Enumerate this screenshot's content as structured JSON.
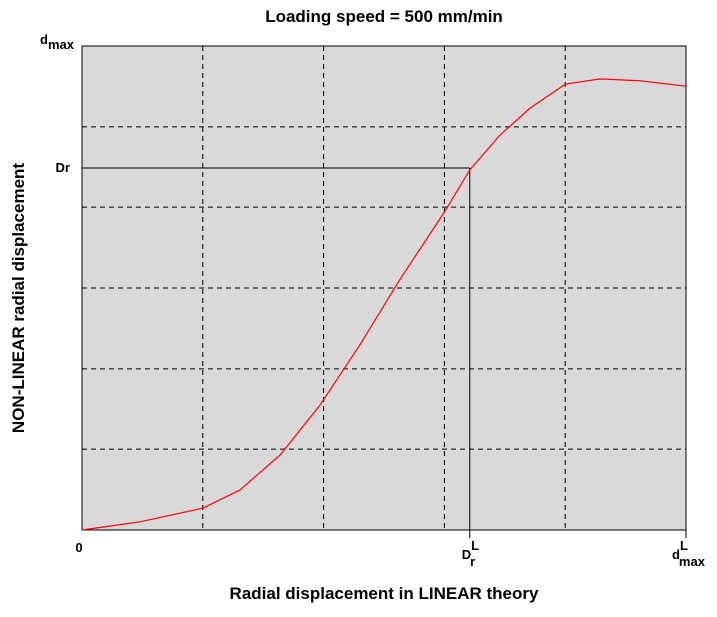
{
  "chart_data": {
    "type": "line",
    "title": "Loading speed = 500 mm/min",
    "xlabel": "Radial displacement in LINEAR theory",
    "ylabel": "NON-LINEAR radial displacement",
    "x": [
      0,
      0.096,
      0.2,
      0.262,
      0.328,
      0.394,
      0.46,
      0.526,
      0.599,
      0.642,
      0.692,
      0.742,
      0.8,
      0.858,
      0.924,
      1
    ],
    "values": [
      0,
      0.017,
      0.045,
      0.083,
      0.155,
      0.258,
      0.382,
      0.517,
      0.655,
      0.744,
      0.816,
      0.872,
      0.921,
      0.932,
      0.928,
      0.917
    ],
    "color": "#ff0000",
    "xlim": [
      0,
      1
    ],
    "ylim": [
      0,
      1
    ],
    "xticks": [
      0,
      {
        "value": 0.642,
        "label": "D",
        "sub": "r",
        "sup": "L"
      },
      {
        "value": 1,
        "label": "d",
        "sub": "max",
        "sup": "L"
      }
    ],
    "yticks": [
      {
        "value": 0.748,
        "label": "Dr"
      },
      {
        "value": 1,
        "label": "d",
        "sub": "max"
      }
    ],
    "xgrid": [
      0.2,
      0.4,
      0.6,
      0.8
    ],
    "ygrid": [
      0.167,
      0.333,
      0.5,
      0.667,
      0.833
    ],
    "grid": true
  }
}
